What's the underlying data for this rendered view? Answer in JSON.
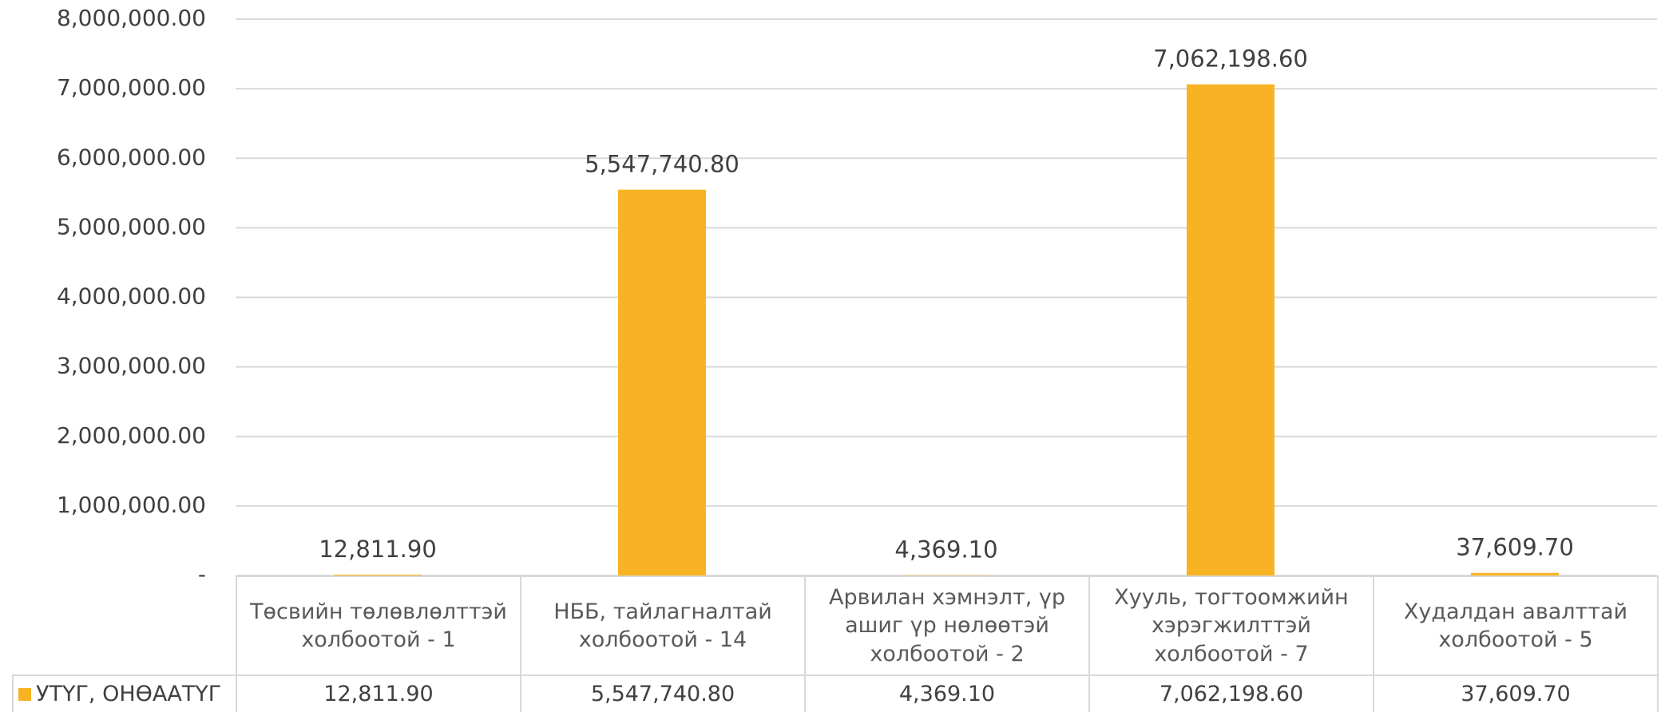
{
  "chart_data": {
    "type": "bar",
    "categories": [
      "Төсвийн төлөвлөлттэй холбоотой - 1",
      "НББ, тайлагналтай холбоотой - 14",
      "Арвилан хэмнэлт, үр ашиг үр нөлөөтэй холбоотой - 2",
      "Хууль, тогтоомжийн хэрэгжилттэй холбоотой - 7",
      "Худалдан авалттай холбоотой - 5"
    ],
    "series": [
      {
        "name": "УТҮГ, ОНӨААТҮГ",
        "color": "#f8b324",
        "values": [
          12811.9,
          5547740.8,
          4369.1,
          7062198.6,
          37609.7
        ],
        "value_labels": [
          "12,811.90",
          "5,547,740.80",
          "4,369.10",
          "7,062,198.60",
          "37,609.70"
        ]
      }
    ],
    "ylim": [
      0,
      8000000
    ],
    "yticks": [
      {
        "value": 0,
        "label": "-"
      },
      {
        "value": 1000000,
        "label": "1,000,000.00"
      },
      {
        "value": 2000000,
        "label": "2,000,000.00"
      },
      {
        "value": 3000000,
        "label": "3,000,000.00"
      },
      {
        "value": 4000000,
        "label": "4,000,000.00"
      },
      {
        "value": 5000000,
        "label": "5,000,000.00"
      },
      {
        "value": 6000000,
        "label": "6,000,000.00"
      },
      {
        "value": 7000000,
        "label": "7,000,000.00"
      },
      {
        "value": 8000000,
        "label": "8,000,000.00"
      }
    ],
    "grid": true
  }
}
